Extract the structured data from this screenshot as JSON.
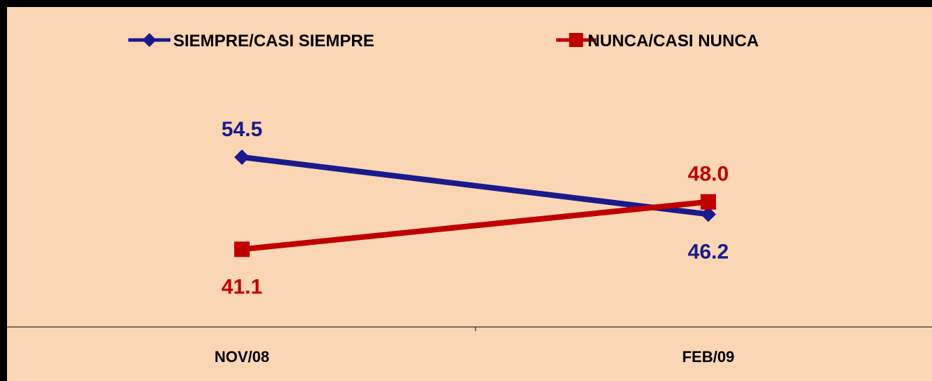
{
  "chart_data": {
    "type": "line",
    "categories": [
      "NOV/08",
      "FEB/09"
    ],
    "series": [
      {
        "name": "SIEMPRE/CASI SIEMPRE",
        "values": [
          54.5,
          46.2
        ],
        "labels": [
          "54.5",
          "46.2"
        ],
        "color": "#1a1a8c",
        "marker": "diamond"
      },
      {
        "name": "NUNCA/CASI NUNCA",
        "values": [
          41.1,
          48.0
        ],
        "labels": [
          "41.1",
          "48.0"
        ],
        "color": "#c00000",
        "marker": "square"
      }
    ],
    "legend_position": "top",
    "grid": false,
    "background_color": "#fad6b4"
  }
}
